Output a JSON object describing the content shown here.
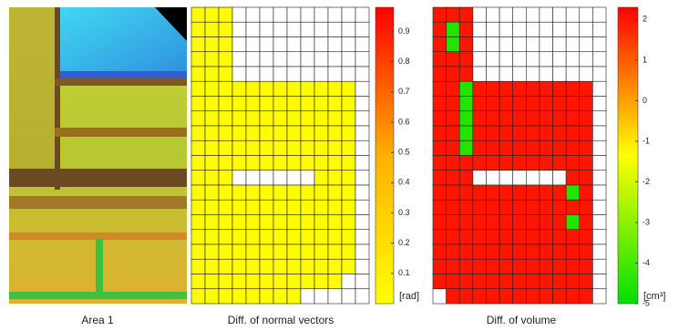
{
  "image": {
    "caption": "Area 1"
  },
  "chart_data": [
    {
      "type": "heatmap",
      "title": "Diff. of normal vectors",
      "colorbar_label": "[rad]",
      "zlim": [
        0,
        0.98
      ],
      "zticks": [
        0.1,
        0.2,
        0.3,
        0.4,
        0.5,
        0.6,
        0.7,
        0.8,
        0.9
      ],
      "colormap": [
        "#ffff00",
        "#ffb000",
        "#ff0000"
      ],
      "grid": true,
      "values": [
        [
          0.02,
          0.02,
          0.02,
          null,
          null,
          null,
          null,
          null,
          null,
          null,
          null,
          null,
          null
        ],
        [
          0.02,
          0.02,
          0.02,
          null,
          null,
          null,
          null,
          null,
          null,
          null,
          null,
          null,
          null
        ],
        [
          0.02,
          0.02,
          0.02,
          null,
          null,
          null,
          null,
          null,
          null,
          null,
          null,
          null,
          null
        ],
        [
          0.02,
          0.02,
          0.02,
          null,
          null,
          null,
          null,
          null,
          null,
          null,
          null,
          null,
          null
        ],
        [
          0.02,
          0.02,
          0.02,
          null,
          null,
          null,
          null,
          null,
          null,
          null,
          null,
          null,
          null
        ],
        [
          0.02,
          0.02,
          0.02,
          0.02,
          0.02,
          0.02,
          0.02,
          0.02,
          0.02,
          0.02,
          0.02,
          0.02,
          null
        ],
        [
          0.02,
          0.02,
          0.02,
          0.02,
          0.02,
          0.02,
          0.02,
          0.02,
          0.02,
          0.02,
          0.02,
          0.02,
          null
        ],
        [
          0.02,
          0.02,
          0.02,
          0.02,
          0.02,
          0.02,
          0.02,
          0.02,
          0.02,
          0.02,
          0.02,
          0.02,
          null
        ],
        [
          0.02,
          0.02,
          0.02,
          0.02,
          0.02,
          0.02,
          0.02,
          0.02,
          0.02,
          0.02,
          0.02,
          0.02,
          null
        ],
        [
          0.02,
          0.02,
          0.02,
          0.02,
          0.02,
          0.02,
          0.02,
          0.02,
          0.02,
          0.02,
          0.02,
          0.02,
          null
        ],
        [
          0.02,
          0.02,
          0.02,
          0.02,
          0.02,
          0.02,
          0.02,
          0.02,
          0.02,
          0.02,
          0.02,
          0.02,
          null
        ],
        [
          0.02,
          0.02,
          0.02,
          null,
          null,
          null,
          null,
          null,
          null,
          0.02,
          0.02,
          0.02,
          null
        ],
        [
          0.02,
          0.02,
          0.02,
          0.02,
          0.02,
          0.02,
          0.02,
          0.02,
          0.02,
          0.02,
          0.02,
          0.02,
          null
        ],
        [
          0.02,
          0.02,
          0.02,
          0.02,
          0.02,
          0.02,
          0.02,
          0.02,
          0.02,
          0.02,
          0.02,
          0.02,
          null
        ],
        [
          0.02,
          0.02,
          0.02,
          0.02,
          0.02,
          0.02,
          0.02,
          0.02,
          0.02,
          0.02,
          0.02,
          0.02,
          null
        ],
        [
          0.02,
          0.02,
          0.02,
          0.02,
          0.02,
          0.02,
          0.02,
          0.02,
          0.02,
          0.02,
          0.02,
          0.02,
          null
        ],
        [
          0.02,
          0.02,
          0.02,
          0.02,
          0.02,
          0.02,
          0.02,
          0.02,
          0.02,
          0.02,
          0.02,
          0.02,
          null
        ],
        [
          0.02,
          0.02,
          0.02,
          0.02,
          0.02,
          0.02,
          0.02,
          0.02,
          0.02,
          0.02,
          0.02,
          0.02,
          null
        ],
        [
          0.02,
          0.02,
          0.02,
          0.02,
          0.02,
          0.02,
          0.02,
          0.02,
          0.02,
          0.02,
          0.02,
          null,
          null
        ],
        [
          0.02,
          0.02,
          0.02,
          0.02,
          0.02,
          0.02,
          0.02,
          0.02,
          null,
          null,
          null,
          null,
          null
        ]
      ]
    },
    {
      "type": "heatmap",
      "title": "Diff. of volume",
      "colorbar_label": "[cm³]",
      "zlim": [
        -5,
        2.3
      ],
      "zticks": [
        -5,
        -4,
        -3,
        -2,
        -1,
        0,
        1,
        2
      ],
      "colormap": [
        "#00e000",
        "#ffff00",
        "#ff0000"
      ],
      "grid": true,
      "values": [
        [
          2,
          2,
          2,
          null,
          null,
          null,
          null,
          null,
          null,
          null,
          null,
          null,
          null
        ],
        [
          2,
          -4.5,
          2,
          null,
          null,
          null,
          null,
          null,
          null,
          null,
          null,
          null,
          null
        ],
        [
          2,
          -4.5,
          2,
          null,
          null,
          null,
          null,
          null,
          null,
          null,
          null,
          null,
          null
        ],
        [
          2,
          2,
          2,
          null,
          null,
          null,
          null,
          null,
          null,
          null,
          null,
          null,
          null
        ],
        [
          2,
          2,
          2,
          null,
          null,
          null,
          null,
          null,
          null,
          null,
          null,
          null,
          null
        ],
        [
          2,
          2,
          -4.5,
          2,
          2,
          2,
          2,
          2,
          2,
          2,
          2,
          2,
          null
        ],
        [
          2,
          2,
          -4.5,
          2,
          2,
          2,
          2,
          2,
          2,
          2,
          2,
          2,
          null
        ],
        [
          2,
          2,
          -4.5,
          2,
          2,
          2,
          2,
          2,
          2,
          2,
          2,
          2,
          null
        ],
        [
          2,
          2,
          -4.5,
          2,
          2,
          2,
          2,
          2,
          2,
          2,
          2,
          2,
          null
        ],
        [
          2,
          2,
          -4.5,
          2,
          2,
          2,
          2,
          2,
          2,
          2,
          2,
          2,
          null
        ],
        [
          2,
          2,
          2,
          2,
          2,
          2,
          2,
          2,
          2,
          2,
          2,
          2,
          null
        ],
        [
          2,
          2,
          2,
          null,
          null,
          null,
          null,
          null,
          null,
          null,
          2,
          2,
          null
        ],
        [
          2,
          2,
          2,
          2,
          2,
          2,
          2,
          2,
          2,
          2,
          -4.5,
          2,
          null
        ],
        [
          2,
          2,
          2,
          2,
          2,
          2,
          2,
          2,
          2,
          2,
          2,
          2,
          null
        ],
        [
          2,
          2,
          2,
          2,
          2,
          2,
          2,
          2,
          2,
          2,
          -4.5,
          2,
          null
        ],
        [
          2,
          2,
          2,
          2,
          2,
          2,
          2,
          2,
          2,
          2,
          2,
          2,
          null
        ],
        [
          2,
          2,
          2,
          2,
          2,
          2,
          2,
          2,
          2,
          2,
          2,
          2,
          null
        ],
        [
          2,
          2,
          2,
          2,
          2,
          2,
          2,
          2,
          2,
          2,
          2,
          2,
          null
        ],
        [
          2,
          2,
          2,
          2,
          2,
          2,
          2,
          2,
          2,
          2,
          2,
          2,
          null
        ],
        [
          null,
          2,
          2,
          2,
          2,
          2,
          2,
          2,
          2,
          2,
          2,
          2,
          null
        ]
      ]
    }
  ]
}
